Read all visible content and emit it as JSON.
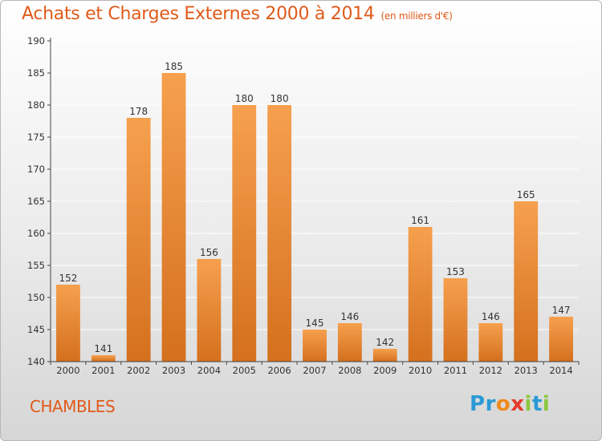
{
  "header": {
    "title": "Achats et Charges Externes 2000 à 2014",
    "unit": "(en milliers d'€)"
  },
  "footer": {
    "place": "CHAMBLES",
    "brand": "Proxiti"
  },
  "colors": {
    "bar_top": "#f6a04e",
    "bar_bottom": "#d4701e",
    "title": "#e05a1a",
    "axis": "#444444",
    "grid": "#ffffff"
  },
  "brand_letters": [
    {
      "ch": "P",
      "color": "#2a9ad6"
    },
    {
      "ch": "r",
      "color": "#2a9ad6"
    },
    {
      "ch": "o",
      "color": "#f08a1c"
    },
    {
      "ch": "x",
      "color": "#e63a2a"
    },
    {
      "ch": "i",
      "color": "#8cc63f"
    },
    {
      "ch": "t",
      "color": "#2a9ad6"
    },
    {
      "ch": "i",
      "color": "#8cc63f"
    }
  ],
  "chart_data": {
    "type": "bar",
    "title": "Achats et Charges Externes 2000 à 2014",
    "subtitle": "(en milliers d'€)",
    "categories": [
      "2000",
      "2001",
      "2002",
      "2003",
      "2004",
      "2005",
      "2006",
      "2007",
      "2008",
      "2009",
      "2010",
      "2011",
      "2012",
      "2013",
      "2014"
    ],
    "values": [
      152,
      141,
      178,
      185,
      156,
      180,
      180,
      145,
      146,
      142,
      161,
      153,
      146,
      165,
      147
    ],
    "ylim": [
      140,
      190
    ],
    "yticks": [
      140,
      145,
      150,
      155,
      160,
      165,
      170,
      175,
      180,
      185,
      190
    ],
    "grid": true
  }
}
